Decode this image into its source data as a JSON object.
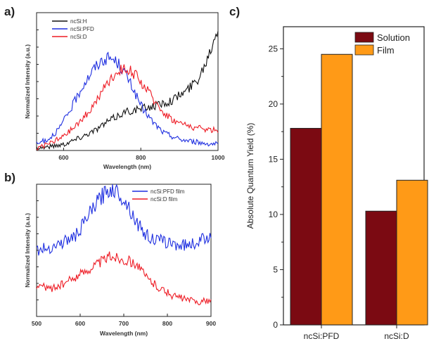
{
  "panels": {
    "a": "a)",
    "b": "b)",
    "c": "c)"
  },
  "colors": {
    "black": "#111111",
    "blue": "#1f2fe0",
    "red": "#ee1c25",
    "solution": "#7b0a12",
    "film": "#ff9a17"
  },
  "chart_data": [
    {
      "id": "a",
      "type": "line",
      "xlabel": "Wavelength (nm)",
      "ylabel": "Normalized Intensity (a.u.)",
      "xlim": [
        530,
        1000
      ],
      "ylim": [
        0,
        1.1
      ],
      "xticks": [
        600,
        800,
        1000
      ],
      "legend": "top-left",
      "series": [
        {
          "name": "ncSi:H",
          "color": "#111111",
          "x": [
            530,
            560,
            600,
            640,
            680,
            720,
            760,
            800,
            840,
            880,
            920,
            950,
            970,
            985,
            1000
          ],
          "y": [
            0.02,
            0.03,
            0.05,
            0.1,
            0.16,
            0.24,
            0.31,
            0.33,
            0.36,
            0.4,
            0.48,
            0.58,
            0.72,
            0.85,
            1.0
          ]
        },
        {
          "name": "ncSi:PFD",
          "color": "#1f2fe0",
          "x": [
            530,
            560,
            590,
            620,
            650,
            680,
            700,
            720,
            740,
            760,
            780,
            800,
            830,
            860,
            900,
            960,
            1000
          ],
          "y": [
            0.05,
            0.09,
            0.18,
            0.34,
            0.52,
            0.66,
            0.72,
            0.74,
            0.7,
            0.61,
            0.49,
            0.36,
            0.23,
            0.14,
            0.09,
            0.06,
            0.05
          ]
        },
        {
          "name": "ncSi:D",
          "color": "#ee1c25",
          "x": [
            530,
            560,
            600,
            640,
            680,
            710,
            740,
            760,
            780,
            800,
            830,
            860,
            890,
            930,
            960,
            1000
          ],
          "y": [
            0.02,
            0.05,
            0.11,
            0.22,
            0.37,
            0.52,
            0.63,
            0.66,
            0.62,
            0.55,
            0.42,
            0.3,
            0.23,
            0.19,
            0.17,
            0.16
          ]
        }
      ]
    },
    {
      "id": "b",
      "type": "line",
      "xlabel": "Wavelength (nm)",
      "ylabel": "Normalized Intensity (a.u.)",
      "xlim": [
        500,
        900
      ],
      "ylim": [
        0,
        1
      ],
      "xticks": [
        500,
        600,
        700,
        800,
        900
      ],
      "legend": "top-right",
      "series": [
        {
          "name": "ncSi:PFD film",
          "color": "#1f2fe0",
          "x": [
            500,
            530,
            560,
            590,
            610,
            630,
            650,
            670,
            690,
            710,
            730,
            750,
            770,
            800,
            830,
            860,
            890,
            900
          ],
          "y": [
            0.5,
            0.52,
            0.56,
            0.61,
            0.71,
            0.82,
            0.91,
            0.97,
            0.93,
            0.84,
            0.71,
            0.62,
            0.58,
            0.56,
            0.54,
            0.55,
            0.6,
            0.63
          ]
        },
        {
          "name": "ncSi:D film",
          "color": "#ee1c25",
          "x": [
            500,
            530,
            560,
            590,
            620,
            650,
            670,
            690,
            710,
            730,
            750,
            780,
            810,
            840,
            870,
            900
          ],
          "y": [
            0.24,
            0.21,
            0.24,
            0.3,
            0.36,
            0.42,
            0.46,
            0.44,
            0.42,
            0.4,
            0.3,
            0.22,
            0.16,
            0.13,
            0.11,
            0.12
          ]
        }
      ]
    },
    {
      "id": "c",
      "type": "bar",
      "ylabel": "Absolute Quantum Yield (%)",
      "ylim": [
        0,
        27
      ],
      "yticks": [
        0,
        5,
        10,
        15,
        20,
        25
      ],
      "legend": "top-right",
      "categories": [
        "ncSi:PFD",
        "ncSi:D"
      ],
      "series": [
        {
          "name": "Solution",
          "color": "#7b0a12",
          "values": [
            17.8,
            10.3
          ]
        },
        {
          "name": "Film",
          "color": "#ff9a17",
          "values": [
            24.5,
            13.1
          ]
        }
      ]
    }
  ]
}
